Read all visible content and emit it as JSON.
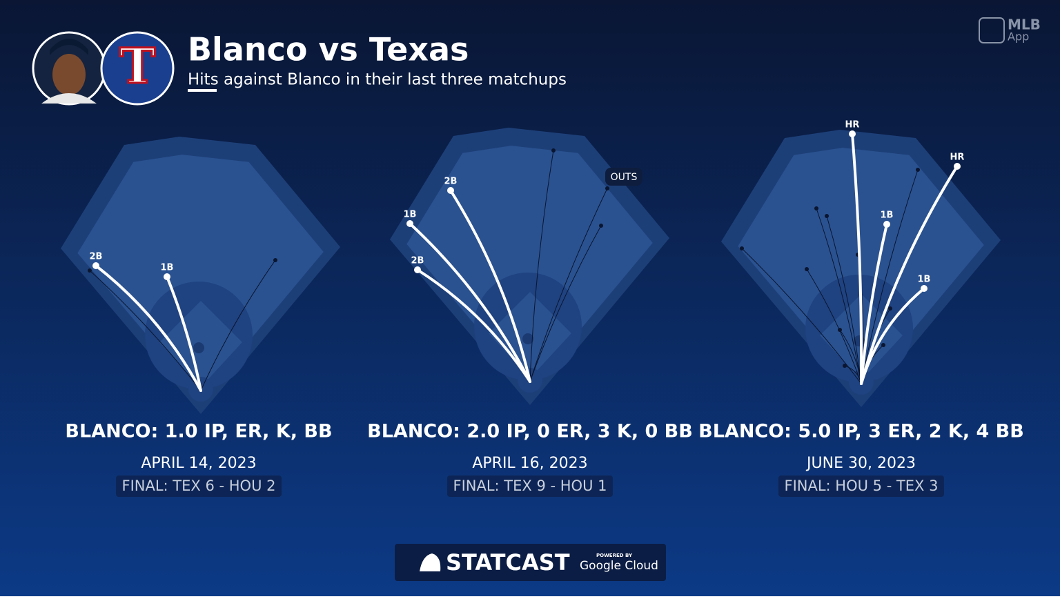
{
  "header": {
    "title": "Blanco vs Texas",
    "subtitle": "Hits against Blanco in their last three matchups"
  },
  "logos": {
    "team": "T",
    "brand": "MLB",
    "app": "App"
  },
  "games": [
    {
      "line": "BLANCO: 1.0 IP, ER, K, BB",
      "date": "APRIL 14, 2023",
      "final": "FINAL: TEX 6 - HOU 2",
      "hits": [
        "2B",
        "1B"
      ]
    },
    {
      "line": "BLANCO: 2.0 IP, 0 ER, 3 K, 0 BB",
      "date": "APRIL 16, 2023",
      "final": "FINAL: TEX 9 - HOU 1",
      "hits": [
        "1B",
        "2B",
        "2B"
      ],
      "outs_label": "OUTS"
    },
    {
      "line": "BLANCO: 5.0 IP, 3 ER, 2 K, 4 BB",
      "date": "JUNE 30, 2023",
      "final": "FINAL: HOU 5 - TEX 3",
      "hits": [
        "HR",
        "HR",
        "1B",
        "1B"
      ]
    }
  ],
  "footer": {
    "brand": "STATCAST",
    "powered": "POWERED BY",
    "cloud": "Google Cloud"
  }
}
